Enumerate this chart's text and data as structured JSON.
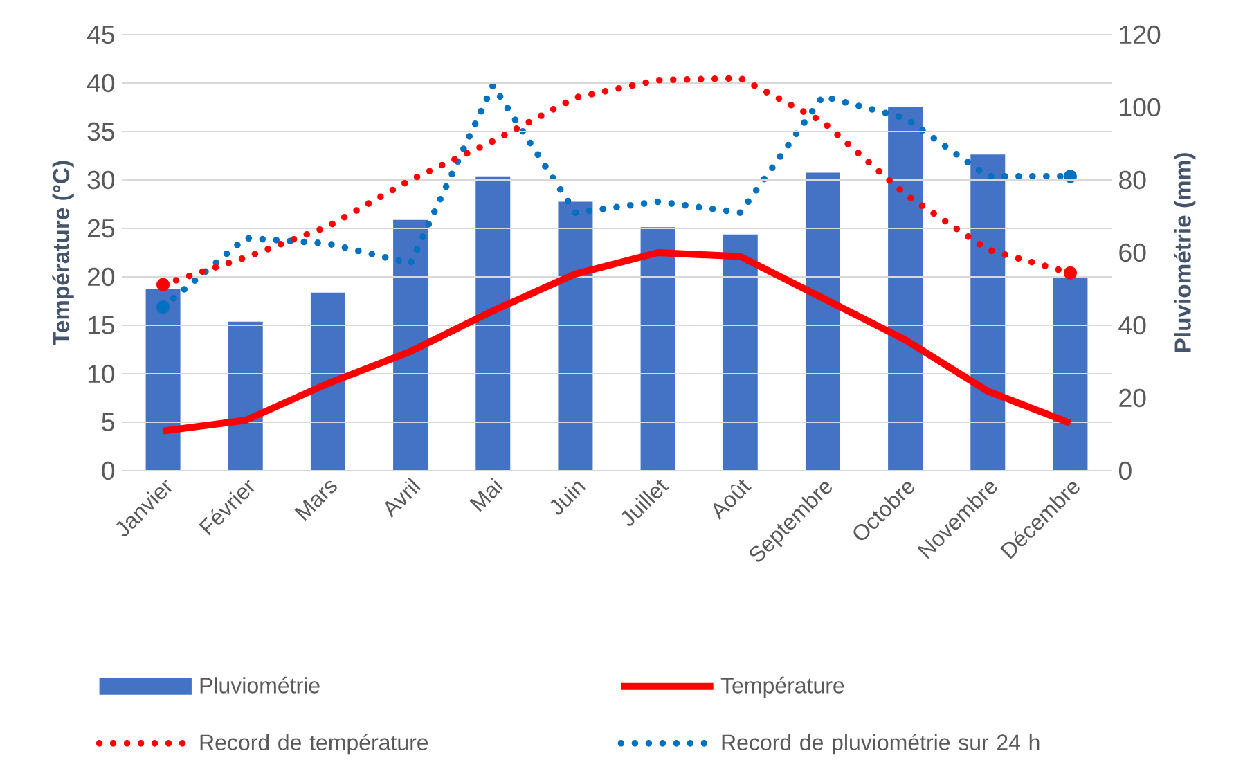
{
  "chart_data": {
    "type": "bar",
    "categories": [
      "Janvier",
      "Février",
      "Mars",
      "Avril",
      "Mai",
      "Juin",
      "Juillet",
      "Août",
      "Septembre",
      "Octobre",
      "Novembre",
      "Décembre"
    ],
    "ylabel": "Température (°C)",
    "y2label": "Pluviométrie (mm)",
    "ylim": [
      0,
      45
    ],
    "yticks": [
      0,
      5,
      10,
      15,
      20,
      25,
      30,
      35,
      40,
      45
    ],
    "y2lim": [
      0,
      120
    ],
    "y2ticks": [
      0,
      20,
      40,
      60,
      80,
      100,
      120
    ],
    "grid": "y",
    "legend": "bottom",
    "series": [
      {
        "name": "Pluviométrie",
        "axis": "y2",
        "color": "#4472c4",
        "values": [
          50,
          41,
          49,
          69,
          81,
          74,
          67,
          65,
          82,
          100,
          87,
          53
        ]
      },
      {
        "name": "Température",
        "type": "line",
        "axis": "y",
        "color": "#ff0000",
        "line_style": "solid",
        "values": [
          4.1,
          5.2,
          9,
          12.3,
          16.5,
          20.3,
          22.5,
          22.1,
          17.8,
          13.5,
          8.2,
          4.9
        ]
      },
      {
        "name": "Record de température",
        "type": "line",
        "axis": "y",
        "color": "#ff0000",
        "line_style": "dotted",
        "values": [
          19.2,
          22,
          25.2,
          30,
          34,
          38.5,
          40.3,
          40.5,
          36,
          28.5,
          22.8,
          20.4
        ]
      },
      {
        "name": "Record de pluviométrie sur 24 h",
        "type": "line",
        "axis": "y2",
        "color": "#0070c0",
        "line_style": "dotted",
        "values": [
          45,
          64,
          62.5,
          57,
          106,
          71,
          74,
          71,
          103,
          97,
          81,
          81
        ]
      }
    ]
  }
}
